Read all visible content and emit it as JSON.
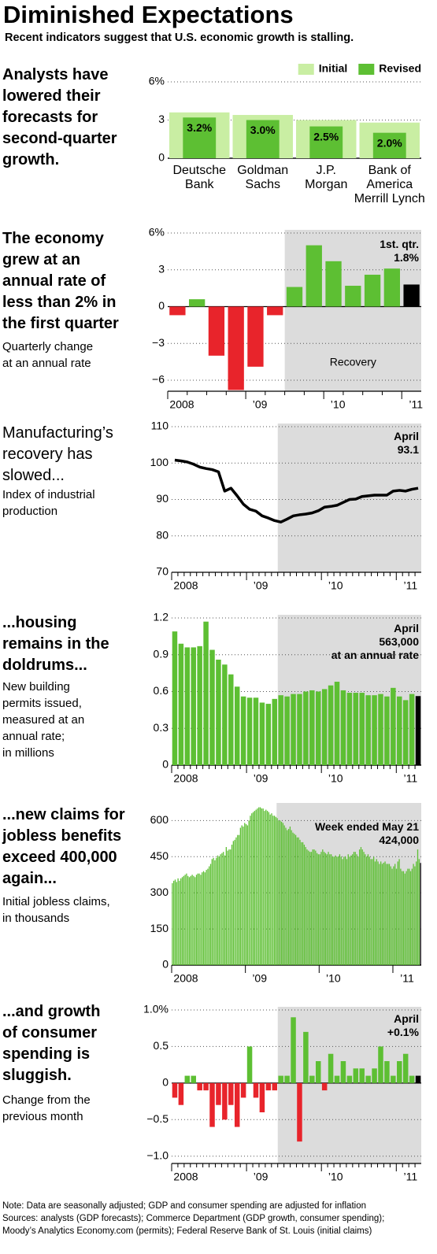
{
  "title": "Diminished Expectations",
  "subtitle": "Recent indicators suggest that U.S. economic growth is stalling.",
  "chart_data": [
    {
      "type": "bar",
      "title": "Analysts have\nlowered their\nforecasts for\nsecond-quarter\ngrowth.",
      "categories": [
        "Deutsche\nBank",
        "Goldman\nSachs",
        "J.P.\nMorgan",
        "Bank of\nAmerica\nMerrill Lynch"
      ],
      "series": [
        {
          "name": "Initial",
          "color": "#c9eea3",
          "values": [
            3.6,
            3.4,
            3.0,
            2.8
          ]
        },
        {
          "name": "Revised",
          "color": "#5dbf33",
          "values": [
            3.2,
            3.0,
            2.5,
            2.0
          ],
          "value_labels": [
            "3.2%",
            "3.0%",
            "2.5%",
            "2.0%"
          ]
        }
      ],
      "ylim": [
        0,
        6
      ],
      "yticks": [
        0,
        3,
        {
          "value": 6,
          "label": "6%"
        }
      ],
      "grid": true,
      "legend": "top-right"
    },
    {
      "type": "bar",
      "title": "The economy\ngrew at an\nannual rate of\nless than 2% in\nthe first quarter",
      "subtitle": "Quarterly change\nat an annual rate",
      "categories": [
        "2008",
        null,
        null,
        null,
        "’09",
        null,
        null,
        null,
        "’10",
        null,
        null,
        null,
        "’11"
      ],
      "values": [
        -0.7,
        0.6,
        -4.0,
        -6.8,
        -4.9,
        -0.7,
        1.6,
        5.0,
        3.7,
        1.7,
        2.6,
        3.1,
        1.8
      ],
      "color": "#5dbf33",
      "negative_color": "#e8242b",
      "highlight_color": "#000000",
      "ylim": [
        -6.9,
        6
      ],
      "yticks": [
        {
          "value": -6,
          "label": "−6"
        },
        {
          "value": -3,
          "label": "−3"
        },
        0,
        3,
        {
          "value": 6,
          "label": "6%"
        }
      ],
      "grid": true,
      "annotation": "1st. qtr.\n1.8%",
      "shade_label": "Recovery"
    },
    {
      "type": "line",
      "title": "Manufacturing’s\nrecovery has\nslowed...",
      "subtitle": "Index of industrial\nproduction",
      "categories": [
        "2008",
        null,
        null,
        null,
        null,
        null,
        null,
        null,
        null,
        null,
        null,
        null,
        "’09",
        null,
        null,
        null,
        null,
        null,
        null,
        null,
        null,
        null,
        null,
        null,
        "’10",
        null,
        null,
        null,
        null,
        null,
        null,
        null,
        null,
        null,
        null,
        null,
        "’11",
        null,
        null,
        null
      ],
      "values": [
        100.8,
        100.6,
        100.3,
        99.7,
        98.9,
        98.5,
        98.2,
        97.6,
        92.3,
        93.1,
        91.0,
        88.7,
        87.3,
        86.8,
        85.5,
        84.9,
        84.2,
        83.8,
        84.6,
        85.5,
        85.8,
        86.0,
        86.3,
        86.9,
        87.9,
        88.1,
        88.4,
        89.2,
        90.0,
        90.1,
        90.8,
        91.0,
        91.2,
        91.2,
        91.2,
        92.3,
        92.5,
        92.3,
        92.8,
        93.1
      ],
      "color": "#000000",
      "ylim": [
        70,
        110
      ],
      "yticks": [
        70,
        80,
        90,
        100,
        110
      ],
      "grid": true,
      "annotation": "April\n93.1"
    },
    {
      "type": "bar",
      "title": "...housing\nremains in the\ndoldrums...",
      "subtitle": "New building\npermits issued,\nmeasured at an\nannual rate;\nin millions",
      "categories": [
        "2008",
        null,
        null,
        null,
        null,
        null,
        null,
        null,
        null,
        null,
        null,
        null,
        "’09",
        null,
        null,
        null,
        null,
        null,
        null,
        null,
        null,
        null,
        null,
        null,
        "’10",
        null,
        null,
        null,
        null,
        null,
        null,
        null,
        null,
        null,
        null,
        null,
        "’11",
        null,
        null,
        null
      ],
      "values": [
        1.09,
        0.99,
        0.96,
        0.96,
        0.97,
        1.17,
        0.94,
        0.86,
        0.82,
        0.74,
        0.64,
        0.56,
        0.55,
        0.55,
        0.51,
        0.5,
        0.54,
        0.57,
        0.56,
        0.58,
        0.58,
        0.6,
        0.61,
        0.6,
        0.62,
        0.65,
        0.68,
        0.61,
        0.59,
        0.59,
        0.59,
        0.57,
        0.57,
        0.58,
        0.56,
        0.63,
        0.56,
        0.53,
        0.58,
        0.563
      ],
      "color": "#5dbf33",
      "highlight_color": "#000000",
      "ylim": [
        0,
        1.2
      ],
      "yticks": [
        0,
        0.3,
        0.6,
        0.9,
        1.2
      ],
      "grid": true,
      "annotation": "April\n563,000\nat an annual rate"
    },
    {
      "type": "bar",
      "title": "...new claims for\njobless benefits\nexceed 400,000\nagain...",
      "subtitle": "Initial jobless claims,\nin thousands",
      "categories": [
        "2008",
        null,
        null,
        null,
        null,
        null,
        null,
        null,
        null,
        null,
        null,
        null,
        null,
        null,
        null,
        null,
        null,
        null,
        null,
        null,
        null,
        null,
        null,
        null,
        null,
        null,
        null,
        null,
        null,
        null,
        null,
        null,
        null,
        null,
        null,
        null,
        null,
        null,
        null,
        null,
        null,
        null,
        null,
        null,
        null,
        null,
        null,
        null,
        null,
        null,
        null,
        null,
        "’09",
        null,
        null,
        null,
        null,
        null,
        null,
        null,
        null,
        null,
        null,
        null,
        null,
        null,
        null,
        null,
        null,
        null,
        null,
        null,
        null,
        null,
        null,
        null,
        null,
        null,
        null,
        null,
        null,
        null,
        null,
        null,
        null,
        null,
        null,
        null,
        null,
        null,
        null,
        null,
        null,
        null,
        null,
        null,
        null,
        null,
        null,
        null,
        null,
        null,
        null,
        null,
        "’10",
        null,
        null,
        null,
        null,
        null,
        null,
        null,
        null,
        null,
        null,
        null,
        null,
        null,
        null,
        null,
        null,
        null,
        null,
        null,
        null,
        null,
        null,
        null,
        null,
        null,
        null,
        null,
        null,
        null,
        null,
        null,
        null,
        null,
        null,
        null,
        null,
        null,
        null,
        null,
        null,
        null,
        null,
        null,
        null,
        null,
        null,
        null,
        null,
        null,
        null,
        null,
        "’11",
        null,
        null,
        null,
        null,
        null,
        null,
        null,
        null,
        null,
        null,
        null,
        null,
        null,
        null,
        null,
        null,
        null,
        null,
        null
      ],
      "values": [
        340,
        350,
        355,
        345,
        360,
        350,
        360,
        365,
        370,
        375,
        380,
        370,
        365,
        370,
        375,
        370,
        365,
        375,
        380,
        380,
        375,
        385,
        390,
        385,
        395,
        400,
        410,
        420,
        440,
        445,
        435,
        445,
        455,
        450,
        460,
        465,
        470,
        455,
        490,
        475,
        480,
        480,
        500,
        515,
        520,
        530,
        540,
        540,
        570,
        580,
        575,
        590,
        585,
        580,
        600,
        620,
        630,
        635,
        640,
        645,
        650,
        655,
        655,
        650,
        650,
        640,
        645,
        640,
        635,
        625,
        630,
        620,
        620,
        615,
        610,
        600,
        600,
        595,
        590,
        580,
        570,
        560,
        565,
        575,
        560,
        550,
        545,
        540,
        530,
        530,
        520,
        510,
        510,
        500,
        490,
        480,
        475,
        470,
        470,
        480,
        480,
        475,
        465,
        460,
        460,
        470,
        480,
        470,
        465,
        460,
        470,
        460,
        460,
        450,
        450,
        455,
        450,
        450,
        460,
        450,
        440,
        450,
        450,
        440,
        460,
        450,
        455,
        460,
        470,
        470,
        460,
        450,
        480,
        490,
        480,
        470,
        460,
        450,
        460,
        450,
        440,
        440,
        450,
        430,
        440,
        430,
        420,
        430,
        420,
        425,
        430,
        420,
        420,
        420,
        410,
        400,
        410,
        420,
        400,
        430,
        440,
        400,
        390,
        390,
        380,
        390,
        400,
        400,
        390,
        400,
        420,
        410,
        430,
        480,
        440,
        424
      ],
      "color": "#5dbf33",
      "highlight_color": "#000000",
      "ylim": [
        0,
        660
      ],
      "yticks": [
        0,
        150,
        300,
        450,
        600
      ],
      "grid": true,
      "annotation": "Week ended May 21\n424,000"
    },
    {
      "type": "bar",
      "title": "...and growth\nof consumer\nspending is\nsluggish.",
      "subtitle": "Change from the\nprevious month",
      "categories": [
        "2008",
        null,
        null,
        null,
        null,
        null,
        null,
        null,
        null,
        null,
        null,
        null,
        "’09",
        null,
        null,
        null,
        null,
        null,
        null,
        null,
        null,
        null,
        null,
        null,
        "’10",
        null,
        null,
        null,
        null,
        null,
        null,
        null,
        null,
        null,
        null,
        null,
        "’11",
        null,
        null,
        null
      ],
      "values": [
        -0.2,
        -0.3,
        0.1,
        0.1,
        -0.1,
        -0.1,
        -0.6,
        -0.3,
        -0.5,
        -0.3,
        -0.6,
        -0.2,
        0.5,
        -0.2,
        -0.4,
        -0.1,
        -0.1,
        0.1,
        0.1,
        0.9,
        -0.8,
        0.7,
        0.1,
        0.3,
        -0.1,
        0.4,
        0.1,
        0.3,
        0.1,
        0.2,
        0.2,
        0.1,
        0.2,
        0.5,
        0.3,
        0.1,
        0.3,
        0.4,
        0.1,
        0.1
      ],
      "color": "#5dbf33",
      "negative_color": "#e8242b",
      "highlight_color": "#000000",
      "ylim": [
        -1.1,
        1.0
      ],
      "yticks": [
        {
          "value": -1,
          "label": "−1.0"
        },
        {
          "value": -0.5,
          "label": "−0.5"
        },
        0,
        0.5,
        {
          "value": 1,
          "label": "1.0%"
        }
      ],
      "grid": true,
      "annotation": "April\n+0.1%"
    }
  ],
  "note": "Note: Data are seasonally adjusted; GDP and consumer spending are adjusted for inflation",
  "sources": "Sources: analysts (GDP forecasts); Commerce Department (GDP growth, consumer spending);\nMoody’s Analytics Economy.com (permits); Federal Reserve Bank of St. Louis (initial claims)"
}
